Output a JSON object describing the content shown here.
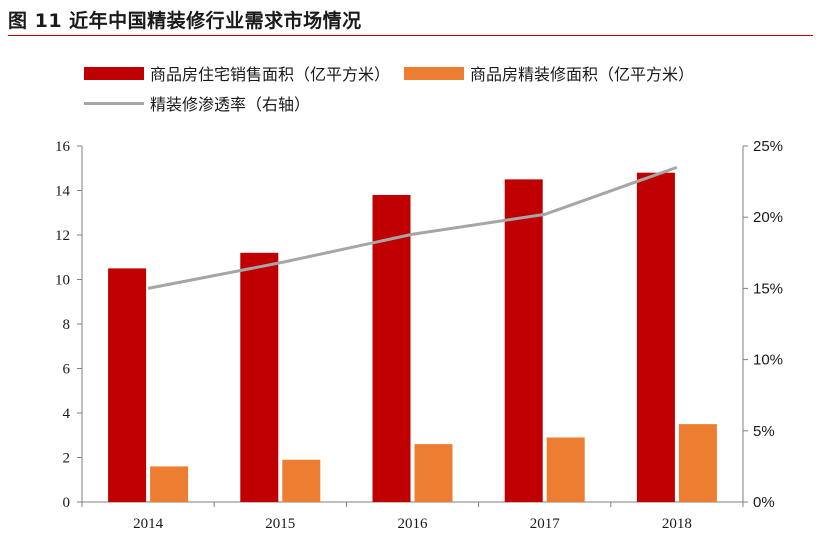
{
  "figure": {
    "title": "图 11 近年中国精装修行业需求市场情况"
  },
  "legend": {
    "series1": "商品房住宅销售面积（亿平方米）",
    "series2": "商品房精装修面积（亿平方米）",
    "series3": "精装修渗透率（右轴）"
  },
  "colors": {
    "series1": "#c00000",
    "series2": "#ed7d31",
    "series3": "#a6a6a6",
    "title_rule": "#c00000"
  },
  "chart_data": {
    "type": "bar",
    "categories": [
      "2014",
      "2015",
      "2016",
      "2017",
      "2018"
    ],
    "series": [
      {
        "name": "商品房住宅销售面积（亿平方米）",
        "type": "bar",
        "axis": "left",
        "values": [
          10.5,
          11.2,
          13.8,
          14.5,
          14.8
        ]
      },
      {
        "name": "商品房精装修面积（亿平方米）",
        "type": "bar",
        "axis": "left",
        "values": [
          1.6,
          1.9,
          2.6,
          2.9,
          3.5
        ]
      },
      {
        "name": "精装修渗透率（右轴）",
        "type": "line",
        "axis": "right",
        "values": [
          15.0,
          16.8,
          18.8,
          20.2,
          23.5
        ]
      }
    ],
    "y_left": {
      "min": 0,
      "max": 16,
      "ticks": [
        "0",
        "2",
        "4",
        "6",
        "8",
        "10",
        "12",
        "14",
        "16"
      ]
    },
    "y_right": {
      "min": 0,
      "max": 25,
      "unit": "%",
      "ticks": [
        "0%",
        "5%",
        "10%",
        "15%",
        "20%",
        "25%"
      ]
    },
    "grid": false,
    "legend_position": "top"
  }
}
